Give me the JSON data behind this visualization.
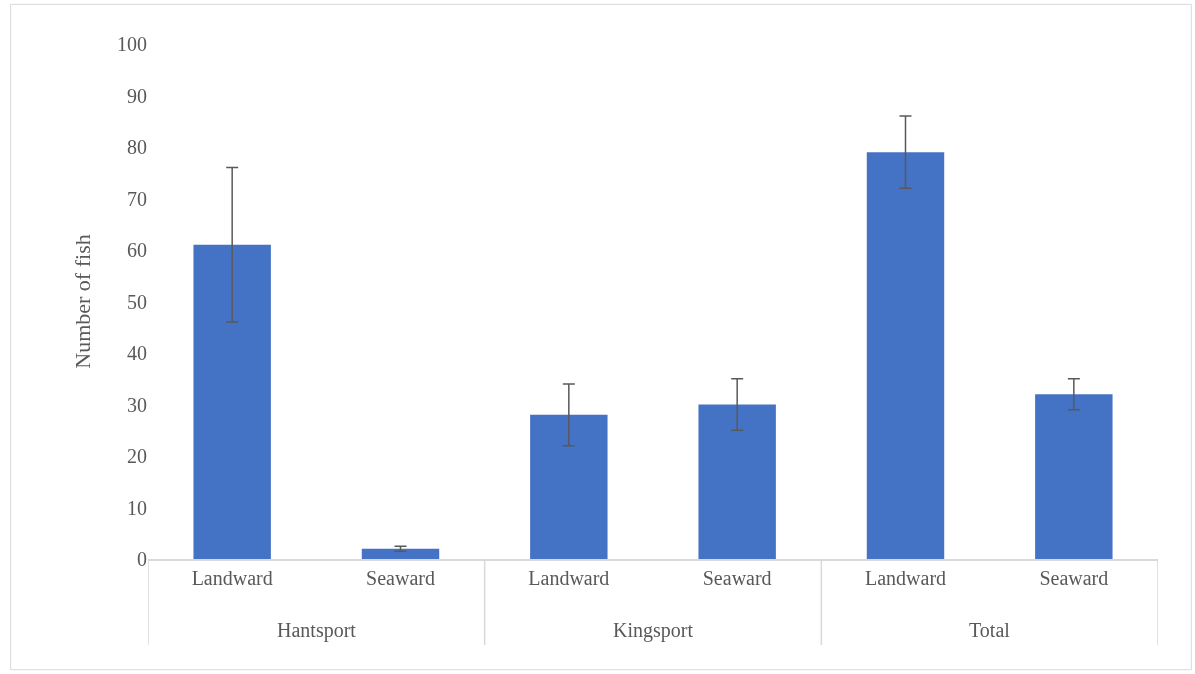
{
  "chart_data": {
    "type": "bar",
    "ylabel": "Number of fish",
    "categories": [
      "Landward",
      "Seaward",
      "Landward",
      "Seaward",
      "Landward",
      "Seaward"
    ],
    "values": [
      61,
      2,
      28,
      30,
      79,
      32
    ],
    "errors": [
      15,
      0.5,
      6,
      5,
      7,
      3
    ],
    "color": "#4472c4",
    "ylim": [
      0,
      100
    ],
    "yticks": [
      0,
      10,
      20,
      30,
      40,
      50,
      60,
      70,
      80,
      90,
      100
    ],
    "annotations": [
      "Hantsport",
      "Kingsport",
      "Total"
    ]
  }
}
